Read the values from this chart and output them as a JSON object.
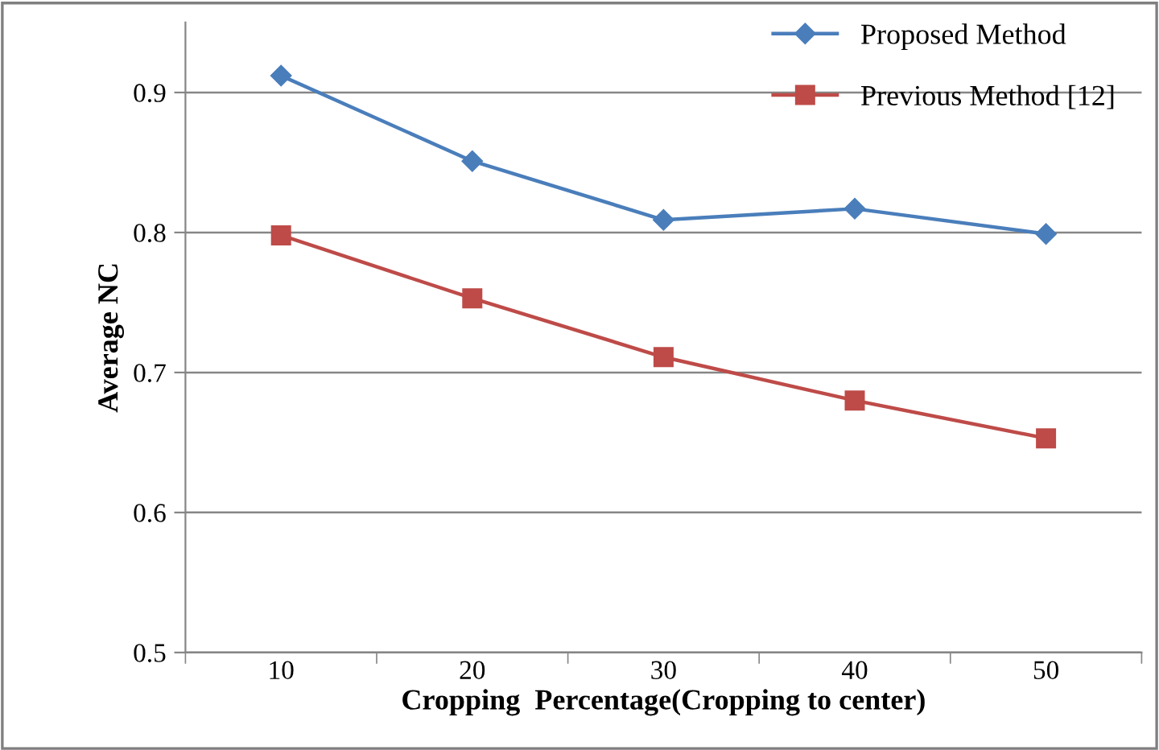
{
  "chart_data": {
    "type": "line",
    "xlabel": "Cropping  Percentage(Cropping to center)",
    "ylabel": "Average NC",
    "categories": [
      "10",
      "20",
      "30",
      "40",
      "50"
    ],
    "series": [
      {
        "name": "Proposed Method",
        "color": "#4a7ebb",
        "marker": "diamond",
        "values": [
          0.912,
          0.851,
          0.809,
          0.817,
          0.799
        ]
      },
      {
        "name": "Previous Method [12]",
        "color": "#be4b48",
        "marker": "square",
        "values": [
          0.798,
          0.753,
          0.711,
          0.68,
          0.653
        ]
      }
    ],
    "ylim": [
      0.5,
      0.95
    ],
    "yticks": [
      0.5,
      0.6,
      0.7,
      0.8,
      0.9
    ],
    "grid": "y",
    "legend": "top right",
    "line_style": "solid"
  }
}
